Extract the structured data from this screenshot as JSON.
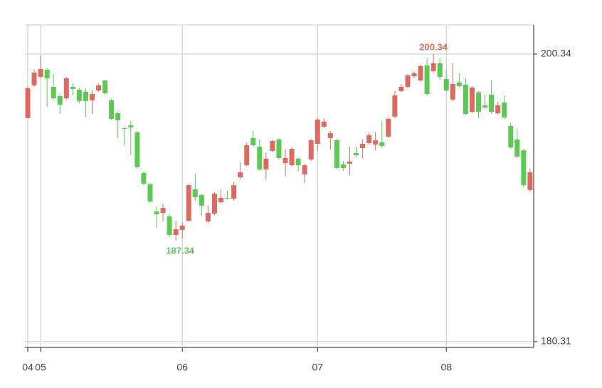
{
  "chart_data": {
    "type": "candlestick",
    "categories": [
      "04",
      null,
      "05",
      null,
      null,
      null,
      null,
      null,
      null,
      null,
      null,
      null,
      null,
      null,
      null,
      null,
      null,
      null,
      null,
      null,
      null,
      null,
      null,
      null,
      "06",
      null,
      null,
      null,
      null,
      null,
      null,
      null,
      null,
      null,
      null,
      null,
      null,
      null,
      null,
      null,
      null,
      null,
      null,
      null,
      null,
      "07",
      null,
      null,
      null,
      null,
      null,
      null,
      null,
      null,
      null,
      null,
      null,
      null,
      null,
      null,
      null,
      null,
      null,
      null,
      null,
      "08",
      null,
      null,
      null,
      null,
      null,
      null,
      null,
      null,
      null,
      null,
      null,
      null,
      null
    ],
    "open": [
      195.88,
      198.16,
      198.75,
      199.25,
      198.06,
      197.41,
      197.26,
      198.06,
      197.86,
      197.71,
      197.12,
      197.81,
      198.5,
      197.12,
      196.22,
      195.18,
      195.38,
      194.88,
      192.06,
      191.26,
      189.38,
      189.28,
      189.03,
      187.74,
      188.09,
      188.73,
      190.92,
      190.52,
      188.68,
      189.23,
      190.02,
      190.32,
      190.27,
      191.76,
      192.6,
      194.49,
      193.89,
      192.31,
      193.59,
      194.39,
      192.75,
      192.6,
      193.05,
      191.96,
      193.0,
      194.09,
      195.28,
      194.49,
      194.34,
      192.65,
      192.7,
      193.45,
      193.79,
      194.14,
      194.04,
      194.19,
      194.59,
      195.98,
      197.76,
      198.06,
      198.8,
      198.5,
      199.55,
      199.15,
      199.7,
      198.6,
      197.17,
      198.36,
      198.21,
      196.32,
      197.66,
      196.77,
      197.51,
      196.22,
      196.97,
      195.33,
      194.39,
      193.64,
      190.87
    ],
    "high": [
      198.06,
      199.25,
      200.24,
      199.35,
      198.95,
      197.51,
      198.75,
      198.31,
      197.96,
      197.96,
      197.81,
      198.31,
      198.55,
      197.22,
      196.32,
      195.28,
      195.68,
      194.98,
      192.16,
      191.36,
      189.73,
      189.92,
      189.23,
      188.73,
      188.63,
      191.31,
      192.01,
      190.62,
      189.78,
      190.72,
      190.92,
      190.82,
      191.46,
      192.8,
      194.19,
      194.98,
      194.39,
      193.5,
      194.39,
      194.49,
      193.69,
      193.84,
      193.15,
      192.7,
      194.44,
      195.88,
      195.88,
      194.98,
      194.44,
      192.9,
      193.89,
      193.89,
      194.39,
      194.88,
      194.93,
      195.68,
      195.93,
      197.76,
      198.26,
      198.95,
      199.1,
      199.6,
      200.04,
      200.34,
      200.04,
      199.25,
      199.7,
      199.0,
      198.65,
      198.11,
      197.76,
      197.51,
      198.5,
      197.02,
      197.46,
      195.53,
      195.13,
      193.74,
      192.36
    ],
    "low": [
      195.88,
      198.06,
      198.65,
      196.67,
      197.17,
      196.17,
      197.17,
      197.46,
      196.92,
      195.93,
      196.17,
      197.71,
      197.51,
      195.73,
      194.49,
      193.99,
      193.3,
      192.36,
      191.21,
      189.97,
      188.24,
      188.68,
      187.59,
      187.34,
      187.49,
      188.63,
      190.12,
      189.08,
      188.58,
      189.13,
      189.97,
      190.22,
      190.12,
      191.66,
      192.5,
      193.89,
      192.21,
      191.61,
      193.5,
      193.0,
      191.81,
      192.5,
      192.16,
      191.36,
      192.9,
      193.59,
      195.18,
      193.69,
      192.31,
      192.21,
      191.91,
      193.2,
      193.1,
      194.04,
      193.64,
      193.79,
      194.49,
      195.88,
      197.66,
      197.96,
      198.65,
      198.41,
      197.46,
      199.05,
      198.55,
      197.71,
      197.07,
      198.01,
      196.07,
      196.22,
      195.88,
      196.52,
      196.17,
      196.12,
      195.83,
      193.74,
      193.1,
      191.06,
      190.77
    ],
    "close": [
      197.96,
      199.05,
      199.3,
      198.65,
      197.26,
      196.82,
      198.65,
      197.91,
      197.07,
      197.07,
      197.56,
      198.16,
      197.61,
      195.83,
      195.73,
      195.13,
      195.23,
      192.46,
      191.31,
      190.07,
      189.18,
      189.63,
      187.74,
      188.14,
      188.39,
      191.21,
      190.37,
      189.78,
      189.28,
      190.62,
      190.32,
      190.27,
      191.21,
      192.11,
      193.99,
      193.99,
      192.31,
      193.05,
      194.29,
      193.1,
      193.1,
      193.74,
      192.6,
      192.6,
      194.34,
      195.78,
      195.63,
      194.83,
      192.41,
      192.41,
      192.85,
      193.3,
      194.09,
      194.69,
      194.34,
      193.94,
      195.83,
      197.46,
      198.06,
      198.85,
      199.0,
      199.5,
      197.56,
      199.7,
      198.75,
      197.81,
      198.26,
      198.11,
      196.17,
      198.01,
      196.32,
      196.62,
      196.32,
      196.77,
      195.93,
      193.84,
      193.2,
      191.21,
      192.11
    ],
    "up_color": "#dc6a5e",
    "down_color": "#5cc856",
    "max_label": 200.34,
    "min_label": 187.34,
    "ylim": [
      179.91,
      202.37
    ],
    "yticks": [
      180.31,
      200.34
    ],
    "grid": true
  }
}
